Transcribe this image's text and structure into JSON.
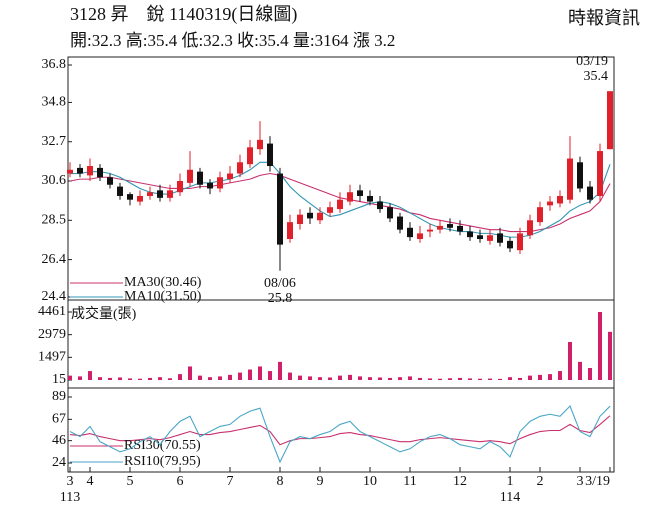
{
  "header": {
    "title": "3128 昇　銳 1140319(日線圖)",
    "quote": "開:32.3 高:35.4 低:32.3 收:35.4 量:3164 漲 3.2",
    "source": "時報資訊"
  },
  "chart_data": [
    {
      "type": "candlestick",
      "ylim": [
        24.4,
        36.8
      ],
      "yticks": [
        24.4,
        26.4,
        28.5,
        30.6,
        32.7,
        34.8,
        36.8
      ],
      "up_color": "#e0202a",
      "down_color": "#111111",
      "open": [
        31.0,
        31.3,
        30.9,
        31.3,
        30.8,
        30.3,
        29.9,
        29.5,
        29.8,
        30.1,
        29.7,
        30.0,
        30.5,
        31.1,
        30.5,
        30.2,
        30.7,
        31.0,
        31.5,
        32.3,
        32.6,
        31.0,
        27.5,
        28.3,
        28.9,
        28.5,
        28.9,
        29.1,
        29.5,
        30.1,
        29.8,
        29.5,
        29.2,
        28.7,
        28.1,
        27.5,
        27.9,
        28.0,
        28.3,
        28.2,
        27.9,
        27.7,
        27.4,
        27.8,
        27.4,
        26.9,
        27.7,
        28.4,
        29.3,
        29.4,
        29.6,
        31.6,
        30.3,
        29.8,
        32.3
      ],
      "high": [
        31.6,
        31.5,
        31.8,
        31.5,
        31.0,
        30.5,
        30.0,
        30.1,
        30.3,
        30.4,
        30.4,
        31.0,
        32.2,
        31.3,
        30.7,
        31.1,
        31.4,
        32.0,
        32.8,
        33.8,
        33.0,
        31.3,
        28.8,
        29.1,
        29.2,
        29.2,
        29.5,
        30.0,
        30.4,
        30.4,
        30.1,
        29.8,
        29.4,
        28.9,
        28.4,
        28.2,
        28.3,
        28.5,
        28.6,
        28.5,
        28.2,
        28.0,
        28.0,
        28.1,
        27.6,
        28.1,
        28.8,
        29.5,
        29.8,
        30.1,
        33.0,
        31.9,
        30.6,
        32.6,
        35.4
      ],
      "low": [
        30.8,
        30.8,
        30.6,
        30.6,
        30.2,
        29.6,
        29.3,
        29.3,
        29.6,
        29.5,
        29.5,
        29.8,
        30.3,
        30.2,
        29.9,
        30.0,
        30.5,
        30.8,
        31.3,
        32.0,
        31.1,
        25.8,
        27.3,
        28.0,
        28.3,
        28.3,
        28.7,
        28.9,
        29.3,
        29.5,
        29.3,
        28.9,
        28.4,
        27.8,
        27.4,
        27.3,
        27.6,
        27.8,
        27.9,
        27.7,
        27.4,
        27.3,
        27.2,
        27.1,
        26.8,
        26.7,
        27.5,
        28.2,
        29.0,
        29.2,
        29.4,
        30.0,
        29.4,
        29.5,
        32.3
      ],
      "close": [
        31.2,
        31.0,
        31.4,
        30.8,
        30.4,
        29.8,
        29.6,
        29.8,
        30.0,
        29.7,
        30.1,
        30.6,
        31.2,
        30.4,
        30.2,
        30.8,
        31.0,
        31.6,
        32.4,
        32.8,
        31.4,
        27.2,
        28.4,
        28.8,
        28.6,
        28.9,
        29.2,
        29.6,
        30.0,
        29.8,
        29.5,
        29.1,
        28.6,
        28.0,
        27.6,
        27.8,
        28.0,
        28.2,
        28.1,
        27.9,
        27.6,
        27.5,
        27.7,
        27.3,
        27.0,
        27.8,
        28.5,
        29.2,
        29.5,
        29.8,
        31.8,
        30.2,
        29.6,
        32.2,
        35.4
      ],
      "series": [
        {
          "name": "MA30(30.46)",
          "color": "#c8306e",
          "values": [
            30.6,
            30.7,
            30.7,
            30.8,
            30.8,
            30.7,
            30.6,
            30.5,
            30.4,
            30.3,
            30.2,
            30.2,
            30.2,
            30.3,
            30.3,
            30.4,
            30.5,
            30.6,
            30.7,
            30.9,
            31.0,
            30.9,
            30.7,
            30.5,
            30.3,
            30.1,
            29.9,
            29.7,
            29.6,
            29.5,
            29.4,
            29.3,
            29.2,
            29.1,
            28.9,
            28.8,
            28.6,
            28.5,
            28.4,
            28.3,
            28.2,
            28.1,
            28.0,
            28.0,
            27.9,
            27.9,
            27.9,
            28.0,
            28.1,
            28.3,
            28.6,
            28.8,
            29.0,
            29.5,
            30.46
          ]
        },
        {
          "name": "MA10(31.50)",
          "color": "#2f96b4",
          "values": [
            31.0,
            31.0,
            31.1,
            31.1,
            31.0,
            30.8,
            30.5,
            30.2,
            30.0,
            29.9,
            29.9,
            30.1,
            30.3,
            30.5,
            30.5,
            30.6,
            30.7,
            30.9,
            31.2,
            31.6,
            31.6,
            31.0,
            30.3,
            29.8,
            29.4,
            29.0,
            28.7,
            28.8,
            29.0,
            29.2,
            29.4,
            29.5,
            29.4,
            29.2,
            28.9,
            28.6,
            28.3,
            28.1,
            28.0,
            27.9,
            27.9,
            27.8,
            27.8,
            27.7,
            27.6,
            27.6,
            27.7,
            27.9,
            28.2,
            28.5,
            29.0,
            29.3,
            29.5,
            30.0,
            31.5
          ]
        }
      ],
      "high_annotation": {
        "date": "03/19",
        "value": 35.4
      },
      "low_annotation": {
        "date": "08/06",
        "value": 25.8
      }
    },
    {
      "type": "bar",
      "label": "成交量(張)",
      "color": "#d0206a",
      "ylim": [
        15,
        4461
      ],
      "yticks": [
        15,
        1497,
        2979,
        4461
      ],
      "values": [
        300,
        250,
        600,
        200,
        150,
        180,
        120,
        100,
        150,
        200,
        130,
        400,
        900,
        300,
        200,
        250,
        350,
        500,
        700,
        900,
        600,
        1200,
        500,
        300,
        250,
        200,
        180,
        300,
        350,
        250,
        200,
        180,
        150,
        200,
        250,
        150,
        120,
        100,
        130,
        150,
        120,
        100,
        110,
        90,
        200,
        150,
        300,
        350,
        400,
        600,
        2500,
        1200,
        800,
        4461,
        3164
      ]
    },
    {
      "type": "line",
      "ylim": [
        24,
        89
      ],
      "yticks": [
        24,
        46,
        67,
        89
      ],
      "categories": [
        "3",
        null,
        "4",
        null,
        null,
        null,
        "5",
        null,
        null,
        null,
        null,
        "6",
        null,
        null,
        null,
        null,
        "7",
        null,
        null,
        null,
        null,
        "8",
        null,
        null,
        null,
        "9",
        null,
        null,
        null,
        null,
        "10",
        null,
        null,
        null,
        "11",
        null,
        null,
        null,
        null,
        "12",
        null,
        null,
        null,
        null,
        "1",
        null,
        null,
        "2",
        null,
        null,
        null,
        "3",
        null,
        null,
        "3/19"
      ],
      "year_labels": [
        "113",
        null,
        null,
        null,
        null,
        null,
        null,
        null,
        null,
        null,
        null,
        null,
        null,
        null,
        null,
        null,
        null,
        null,
        null,
        null,
        null,
        null,
        null,
        null,
        null,
        null,
        null,
        null,
        null,
        null,
        null,
        null,
        null,
        null,
        null,
        null,
        null,
        null,
        null,
        null,
        null,
        null,
        null,
        null,
        "114",
        null,
        null,
        null,
        null,
        null,
        null,
        null,
        null,
        null,
        null
      ],
      "series": [
        {
          "name": "RSI30(70.55)",
          "color": "#c8306e",
          "values": [
            52,
            51,
            53,
            50,
            48,
            46,
            46,
            47,
            48,
            47,
            49,
            52,
            55,
            52,
            52,
            54,
            55,
            57,
            59,
            61,
            55,
            42,
            46,
            48,
            48,
            49,
            50,
            53,
            54,
            52,
            51,
            49,
            47,
            45,
            45,
            47,
            48,
            49,
            48,
            47,
            46,
            45,
            46,
            45,
            43,
            48,
            52,
            55,
            56,
            56,
            62,
            56,
            54,
            62,
            70.55
          ]
        },
        {
          "name": "RSI10(79.95)",
          "color": "#4aa6c8",
          "values": [
            55,
            50,
            60,
            45,
            40,
            35,
            38,
            45,
            50,
            42,
            55,
            65,
            70,
            50,
            55,
            60,
            62,
            70,
            75,
            78,
            50,
            25,
            45,
            50,
            48,
            52,
            55,
            62,
            65,
            55,
            50,
            45,
            40,
            35,
            38,
            45,
            50,
            52,
            48,
            42,
            40,
            38,
            45,
            40,
            30,
            55,
            65,
            70,
            72,
            70,
            80,
            55,
            50,
            70,
            79.95
          ]
        }
      ]
    }
  ]
}
